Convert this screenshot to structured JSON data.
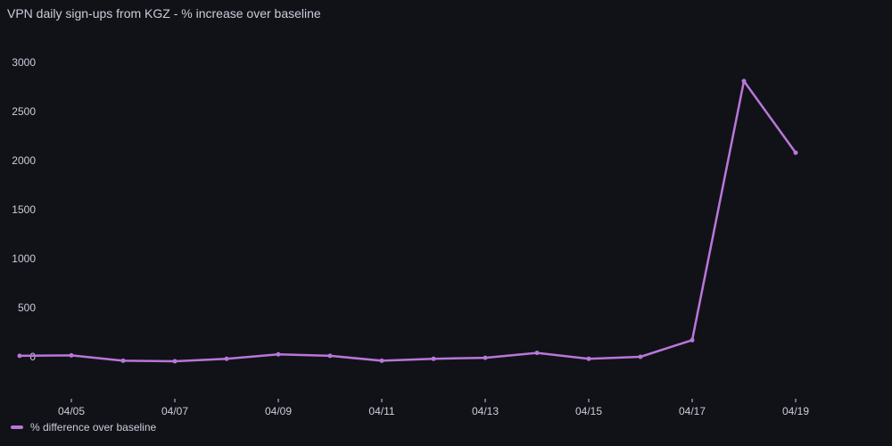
{
  "title": "VPN daily sign-ups from KGZ - % increase over baseline",
  "chart_data": {
    "type": "line",
    "x": [
      "04/04",
      "04/05",
      "04/06",
      "04/07",
      "04/08",
      "04/09",
      "04/10",
      "04/11",
      "04/12",
      "04/13",
      "04/14",
      "04/15",
      "04/16",
      "04/17",
      "04/18",
      "04/19"
    ],
    "xtick_labels": [
      "04/05",
      "04/07",
      "04/09",
      "04/11",
      "04/13",
      "04/15",
      "04/17",
      "04/19"
    ],
    "series": [
      {
        "name": "% difference over baseline",
        "color": "#b877d9",
        "values": [
          10,
          15,
          -40,
          -45,
          -20,
          25,
          10,
          -40,
          -20,
          -10,
          40,
          -20,
          0,
          170,
          2810,
          2080
        ]
      }
    ],
    "yticks": [
      0,
      500,
      1000,
      1500,
      2000,
      2500,
      3000
    ],
    "ylim": [
      -400,
      3250
    ],
    "xlabel": "",
    "ylabel": "",
    "grid": false,
    "legend": "bottom-left"
  }
}
